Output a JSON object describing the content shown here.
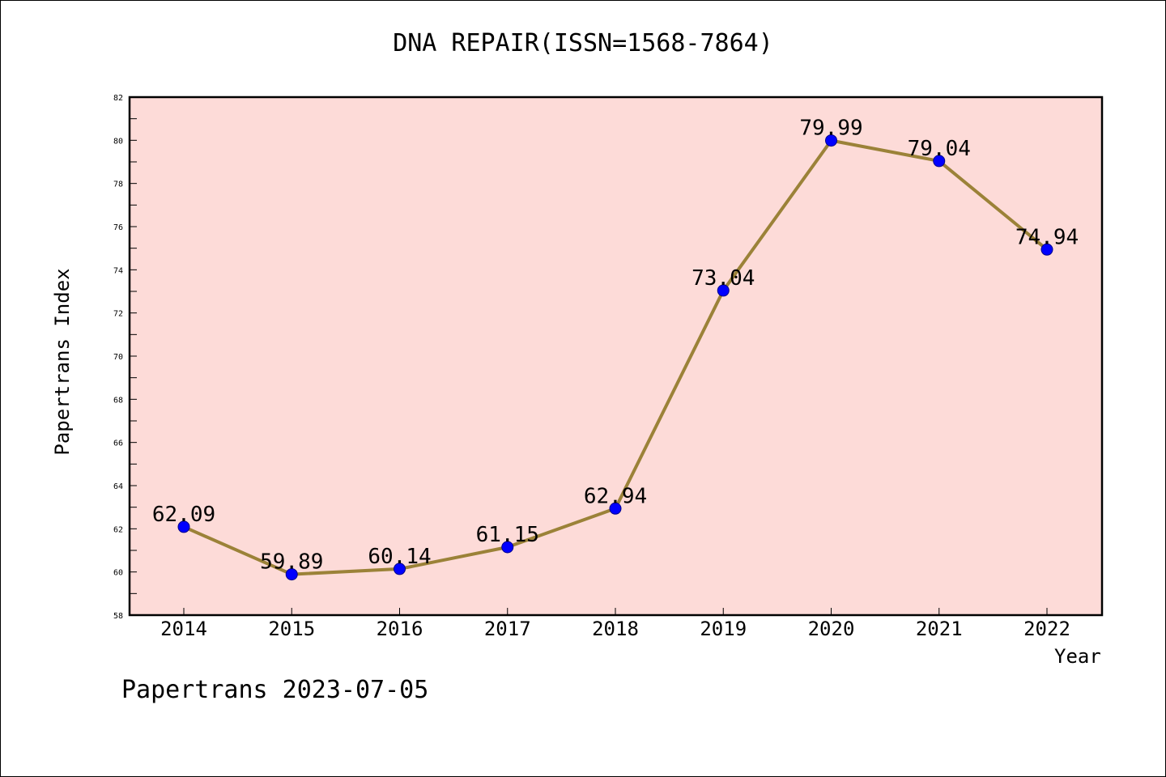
{
  "chart_data": {
    "type": "line",
    "title": "DNA REPAIR(ISSN=1568-7864)",
    "xlabel": "Year",
    "ylabel": "Papertrans Index",
    "categories": [
      "2014",
      "2015",
      "2016",
      "2017",
      "2018",
      "2019",
      "2020",
      "2021",
      "2022"
    ],
    "series": [
      {
        "values": [
          62.09,
          59.89,
          60.14,
          61.15,
          62.94,
          73.04,
          79.99,
          79.04,
          74.94
        ],
        "labels": [
          "62.09",
          "59.89",
          "60.14",
          "61.15",
          "62.94",
          "73.04",
          "79.99",
          "79.04",
          "74.94"
        ]
      }
    ],
    "ylim": [
      58,
      82
    ],
    "yticks": [
      "58",
      "60",
      "62",
      "64",
      "66",
      "68",
      "70",
      "72",
      "74",
      "76",
      "78",
      "80",
      "82"
    ],
    "grid": false,
    "legend": "none",
    "colors": {
      "plot_background": "#fddbd8",
      "line": "#9b8238",
      "marker": "#0000ff",
      "axis": "#000000"
    }
  },
  "footer": "Papertrans 2023-07-05"
}
